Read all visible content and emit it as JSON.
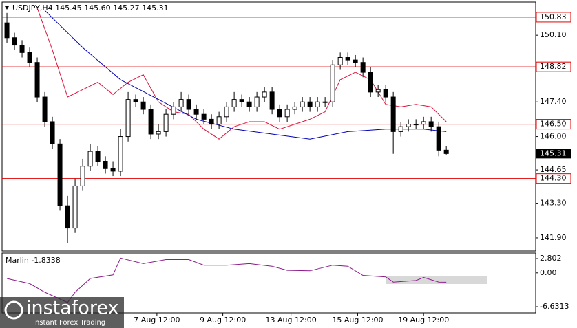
{
  "chart_data": [
    {
      "type": "candlestick",
      "title": "USDJPY,H4  145.45 145.60 145.27 145.31",
      "open": [
        150.6,
        150.0,
        149.7,
        149.4,
        149.0,
        147.6,
        146.6,
        145.7,
        143.2,
        142.3,
        144.0,
        144.8,
        145.4,
        145.0,
        144.7,
        144.6,
        146.0,
        147.5,
        147.4,
        147.1,
        146.1,
        146.2,
        146.9,
        147.2,
        147.5,
        147.1,
        146.9,
        146.7,
        146.5,
        146.8,
        147.2,
        147.5,
        147.4,
        147.2,
        147.6,
        147.8,
        147.1,
        146.8,
        147.1,
        147.2,
        147.4,
        147.2,
        147.4,
        147.4,
        148.9,
        149.2,
        149.1,
        149.0,
        148.6,
        147.8,
        147.9,
        147.6,
        146.2,
        146.4,
        146.5,
        146.5,
        146.6,
        146.4,
        145.45
      ],
      "high": [
        151.0,
        150.2,
        149.9,
        149.6,
        149.2,
        147.8,
        146.8,
        145.9,
        143.6,
        144.3,
        145.1,
        145.7,
        145.6,
        145.2,
        145.0,
        146.3,
        147.8,
        147.7,
        147.6,
        147.3,
        146.5,
        147.1,
        147.4,
        147.8,
        147.7,
        147.3,
        147.1,
        146.9,
        147.0,
        147.4,
        147.8,
        147.7,
        147.6,
        147.8,
        148.0,
        148.0,
        147.3,
        147.3,
        147.4,
        147.6,
        147.6,
        147.6,
        147.6,
        149.1,
        149.4,
        149.4,
        149.3,
        149.2,
        148.8,
        148.1,
        148.1,
        147.8,
        146.6,
        146.7,
        146.7,
        146.8,
        146.8,
        146.6,
        145.6
      ],
      "low": [
        149.8,
        149.5,
        149.2,
        148.8,
        147.4,
        146.4,
        145.5,
        143.0,
        141.7,
        142.1,
        143.8,
        144.6,
        144.8,
        144.5,
        144.4,
        144.4,
        145.8,
        147.2,
        146.9,
        145.9,
        145.9,
        146.0,
        146.7,
        147.0,
        146.9,
        146.7,
        146.5,
        146.3,
        146.3,
        146.6,
        147.0,
        147.2,
        147.0,
        147.0,
        147.4,
        146.9,
        146.6,
        146.6,
        146.9,
        147.0,
        147.0,
        147.0,
        147.2,
        147.2,
        148.7,
        148.9,
        148.8,
        148.4,
        147.6,
        147.6,
        147.4,
        145.3,
        146.0,
        146.2,
        146.3,
        146.3,
        146.2,
        145.2,
        145.27
      ],
      "close": [
        150.0,
        149.7,
        149.4,
        149.0,
        147.6,
        146.6,
        145.7,
        143.2,
        142.3,
        144.0,
        144.8,
        145.4,
        145.0,
        144.7,
        144.6,
        146.0,
        147.5,
        147.4,
        147.1,
        146.1,
        146.2,
        146.9,
        147.2,
        147.5,
        147.1,
        146.9,
        146.7,
        146.5,
        146.8,
        147.2,
        147.5,
        147.4,
        147.2,
        147.6,
        147.8,
        147.1,
        146.8,
        147.1,
        147.2,
        147.4,
        147.2,
        147.4,
        147.4,
        148.9,
        149.2,
        149.1,
        149.0,
        148.6,
        147.8,
        147.9,
        147.6,
        146.2,
        146.4,
        146.5,
        146.5,
        146.6,
        146.4,
        145.45,
        145.31
      ],
      "up_color": "#ffffff",
      "down_color": "#000000",
      "lines": [
        {
          "color": "#dc143c",
          "x": [
            4,
            6,
            8,
            10,
            12,
            14,
            16,
            18,
            20,
            22,
            24,
            26,
            28,
            30,
            32,
            34,
            36,
            38,
            40,
            42,
            44,
            46,
            48,
            50,
            52,
            54,
            56,
            58
          ],
          "values": [
            151.2,
            149.5,
            147.6,
            147.9,
            148.2,
            147.7,
            148.2,
            148.5,
            147.4,
            147.0,
            146.9,
            146.3,
            145.9,
            146.4,
            146.6,
            146.6,
            146.3,
            146.5,
            146.7,
            147.0,
            148.3,
            148.6,
            148.3,
            147.3,
            147.2,
            147.3,
            147.2,
            146.6
          ]
        },
        {
          "color": "#0000b4",
          "x": [
            5,
            10,
            15,
            20,
            25,
            30,
            35,
            40,
            45,
            50,
            55,
            58
          ],
          "values": [
            151.1,
            149.6,
            148.3,
            147.5,
            146.7,
            146.3,
            146.1,
            145.9,
            146.2,
            146.3,
            146.3,
            146.2
          ]
        }
      ],
      "levels": {
        "color": "#e00000",
        "values": [
          150.83,
          148.82,
          {
            "value": 146.5,
            "label": "146.50"
          },
          {
            "value": 144.3,
            "label": "144.30"
          }
        ]
      },
      "current_price": 145.31,
      "xlim": [
        -0.64,
        69.8
      ],
      "ylim": [
        141.37,
        151.44
      ],
      "yticks": [
        {
          "value": 150.1,
          "label": "150.10"
        },
        {
          "value": 147.4,
          "label": "147.40"
        },
        {
          "value": 146,
          "label": "146.00"
        },
        144.65,
        {
          "value": 143.3,
          "label": "143.30"
        },
        {
          "value": 141.9,
          "label": "141.90"
        }
      ],
      "xticks": [
        {
          "value": 19.8,
          "label": "7 Aug 12:00"
        },
        {
          "value": 28.5,
          "label": "9 Aug 12:00"
        },
        {
          "value": 37.5,
          "label": "13 Aug 12:00"
        },
        {
          "value": 46.3,
          "label": "15 Aug 12:00"
        },
        {
          "value": 55,
          "label": "19 Aug 12:00"
        }
      ]
    },
    {
      "type": "line",
      "title": "Marlin -1.8338",
      "color": "#8b1a8b",
      "x": [
        0,
        3,
        5,
        8,
        9,
        11,
        14,
        15,
        18,
        21,
        24,
        26,
        29,
        32,
        35,
        37,
        40,
        43,
        45,
        47,
        50,
        51,
        54,
        55,
        57,
        58
      ],
      "values": [
        -1.1,
        -2.1,
        -3.8,
        -5.8,
        -3.8,
        -1.1,
        -0.4,
        2.9,
        1.8,
        2.6,
        2.6,
        1.5,
        1.5,
        1.8,
        1.3,
        0.5,
        0.4,
        1.5,
        1.3,
        -0.5,
        -0.8,
        -1.8,
        -1.5,
        -0.9,
        -1.8,
        -1.8338
      ],
      "xlim": [
        -0.64,
        69.8
      ],
      "ylim": [
        -7.84,
        3.88
      ],
      "yticks": [
        2.802,
        {
          "value": 0,
          "label": "0.00"
        },
        -6.6313
      ]
    }
  ],
  "watermark": {
    "brand": "instaforex",
    "tagline": "Instant Forex Trading"
  }
}
